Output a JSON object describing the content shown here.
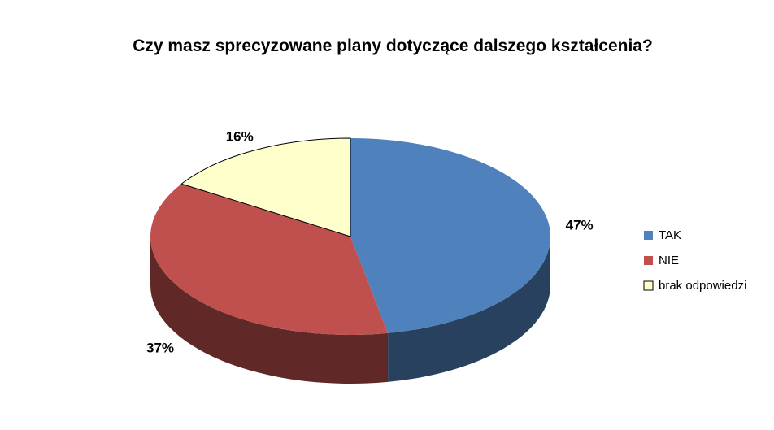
{
  "chart_data": {
    "type": "pie",
    "title": "Czy masz sprecyzowane plany dotyczące dalszego kształcenia?",
    "categories": [
      "TAK",
      "NIE",
      "brak odpowiedzi"
    ],
    "values": [
      47,
      37,
      16
    ],
    "value_labels": [
      "47%",
      "37%",
      "16%"
    ],
    "colors": [
      "#4f81bd",
      "#c0504d",
      "#ffffcc"
    ],
    "legend": "right"
  }
}
